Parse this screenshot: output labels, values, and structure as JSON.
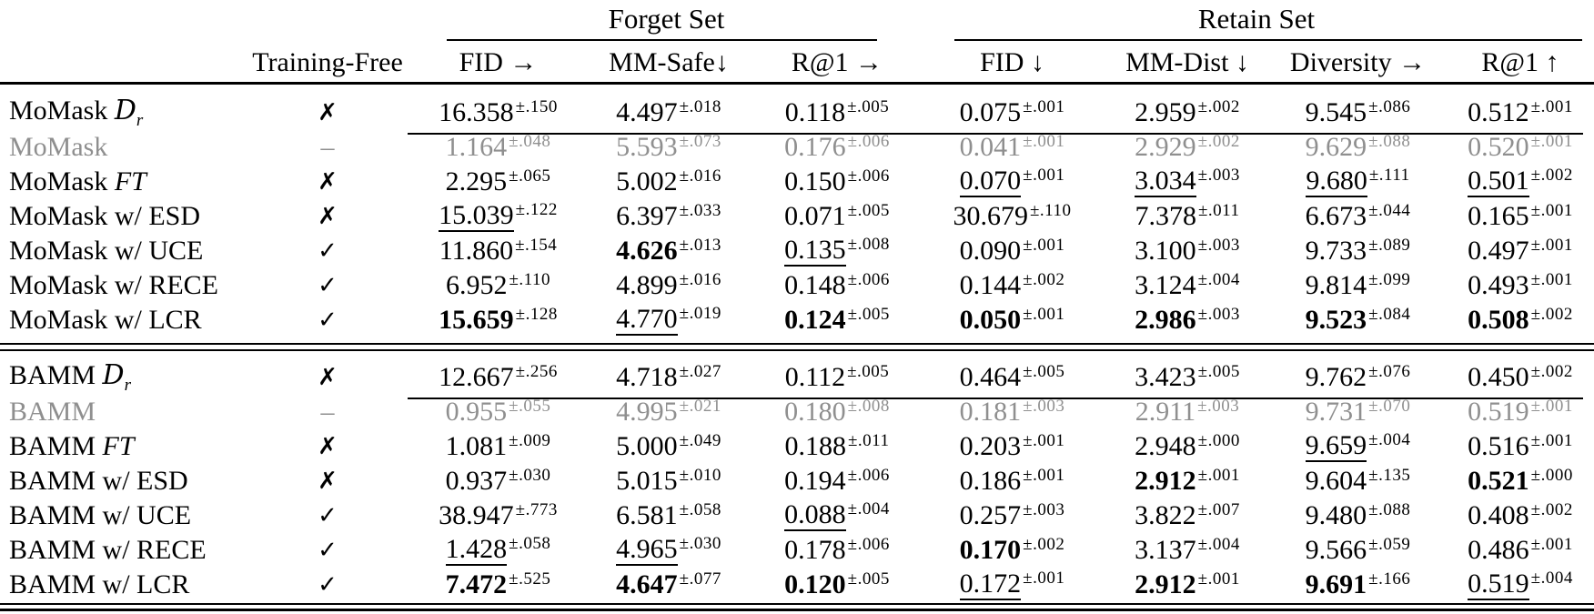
{
  "table": {
    "groups": [
      {
        "label": "Forget Set"
      },
      {
        "label": "Retain Set"
      }
    ],
    "columns": [
      "Training-Free",
      "FID →",
      "MM-Safe↓",
      "R@1 →",
      "FID ↓",
      "MM-Dist ↓",
      "Diversity →",
      "R@1 ↑"
    ],
    "style_legend": {
      "n": "normal",
      "b": "bold",
      "u": "underline"
    },
    "sections": [
      {
        "rows": [
          {
            "m": "MoMask",
            "suffix": "Dr",
            "tf": "✗",
            "gray": false,
            "cells": [
              {
                "v": "16.358",
                "e": "±.150",
                "s": "n"
              },
              {
                "v": "4.497",
                "e": "±.018",
                "s": "n"
              },
              {
                "v": "0.118",
                "e": "±.005",
                "s": "n"
              },
              {
                "v": "0.075",
                "e": "±.001",
                "s": "n"
              },
              {
                "v": "2.959",
                "e": "±.002",
                "s": "n"
              },
              {
                "v": "9.545",
                "e": "±.086",
                "s": "n"
              },
              {
                "v": "0.512",
                "e": "±.001",
                "s": "n"
              }
            ]
          },
          {
            "m": "MoMask",
            "suffix": "",
            "tf": "–",
            "gray": true,
            "cells": [
              {
                "v": "1.164",
                "e": "±.048",
                "s": "n"
              },
              {
                "v": "5.593",
                "e": "±.073",
                "s": "n"
              },
              {
                "v": "0.176",
                "e": "±.006",
                "s": "n"
              },
              {
                "v": "0.041",
                "e": "±.001",
                "s": "n"
              },
              {
                "v": "2.929",
                "e": "±.002",
                "s": "n"
              },
              {
                "v": "9.629",
                "e": "±.088",
                "s": "n"
              },
              {
                "v": "0.520",
                "e": "±.001",
                "s": "n"
              }
            ]
          },
          {
            "m": "MoMask",
            "suffix": "FT",
            "tf": "✗",
            "gray": false,
            "cells": [
              {
                "v": "2.295",
                "e": "±.065",
                "s": "n"
              },
              {
                "v": "5.002",
                "e": "±.016",
                "s": "n"
              },
              {
                "v": "0.150",
                "e": "±.006",
                "s": "n"
              },
              {
                "v": "0.070",
                "e": "±.001",
                "s": "u"
              },
              {
                "v": "3.034",
                "e": "±.003",
                "s": "u"
              },
              {
                "v": "9.680",
                "e": "±.111",
                "s": "u"
              },
              {
                "v": "0.501",
                "e": "±.002",
                "s": "u"
              }
            ]
          },
          {
            "m": "MoMask w/ ESD",
            "suffix": "",
            "tf": "✗",
            "gray": false,
            "cells": [
              {
                "v": "15.039",
                "e": "±.122",
                "s": "u"
              },
              {
                "v": "6.397",
                "e": "±.033",
                "s": "n"
              },
              {
                "v": "0.071",
                "e": "±.005",
                "s": "n"
              },
              {
                "v": "30.679",
                "e": "±.110",
                "s": "n"
              },
              {
                "v": "7.378",
                "e": "±.011",
                "s": "n"
              },
              {
                "v": "6.673",
                "e": "±.044",
                "s": "n"
              },
              {
                "v": "0.165",
                "e": "±.001",
                "s": "n"
              }
            ]
          },
          {
            "m": "MoMask w/ UCE",
            "suffix": "",
            "tf": "✓",
            "gray": false,
            "cells": [
              {
                "v": "11.860",
                "e": "±.154",
                "s": "n"
              },
              {
                "v": "4.626",
                "e": "±.013",
                "s": "b"
              },
              {
                "v": "0.135",
                "e": "±.008",
                "s": "u"
              },
              {
                "v": "0.090",
                "e": "±.001",
                "s": "n"
              },
              {
                "v": "3.100",
                "e": "±.003",
                "s": "n"
              },
              {
                "v": "9.733",
                "e": "±.089",
                "s": "n"
              },
              {
                "v": "0.497",
                "e": "±.001",
                "s": "n"
              }
            ]
          },
          {
            "m": "MoMask w/ RECE",
            "suffix": "",
            "tf": "✓",
            "gray": false,
            "cells": [
              {
                "v": "6.952",
                "e": "±.110",
                "s": "n"
              },
              {
                "v": "4.899",
                "e": "±.016",
                "s": "n"
              },
              {
                "v": "0.148",
                "e": "±.006",
                "s": "n"
              },
              {
                "v": "0.144",
                "e": "±.002",
                "s": "n"
              },
              {
                "v": "3.124",
                "e": "±.004",
                "s": "n"
              },
              {
                "v": "9.814",
                "e": "±.099",
                "s": "n"
              },
              {
                "v": "0.493",
                "e": "±.001",
                "s": "n"
              }
            ]
          },
          {
            "m": "MoMask w/ LCR",
            "suffix": "",
            "tf": "✓",
            "gray": false,
            "cells": [
              {
                "v": "15.659",
                "e": "±.128",
                "s": "b"
              },
              {
                "v": "4.770",
                "e": "±.019",
                "s": "u"
              },
              {
                "v": "0.124",
                "e": "±.005",
                "s": "b"
              },
              {
                "v": "0.050",
                "e": "±.001",
                "s": "b"
              },
              {
                "v": "2.986",
                "e": "±.003",
                "s": "b"
              },
              {
                "v": "9.523",
                "e": "±.084",
                "s": "b"
              },
              {
                "v": "0.508",
                "e": "±.002",
                "s": "b"
              }
            ]
          }
        ]
      },
      {
        "rows": [
          {
            "m": "BAMM",
            "suffix": "Dr",
            "tf": "✗",
            "gray": false,
            "cells": [
              {
                "v": "12.667",
                "e": "±.256",
                "s": "n"
              },
              {
                "v": "4.718",
                "e": "±.027",
                "s": "n"
              },
              {
                "v": "0.112",
                "e": "±.005",
                "s": "n"
              },
              {
                "v": "0.464",
                "e": "±.005",
                "s": "n"
              },
              {
                "v": "3.423",
                "e": "±.005",
                "s": "n"
              },
              {
                "v": "9.762",
                "e": "±.076",
                "s": "n"
              },
              {
                "v": "0.450",
                "e": "±.002",
                "s": "n"
              }
            ]
          },
          {
            "m": "BAMM",
            "suffix": "",
            "tf": "–",
            "gray": true,
            "cells": [
              {
                "v": "0.955",
                "e": "±.055",
                "s": "n"
              },
              {
                "v": "4.995",
                "e": "±.021",
                "s": "n"
              },
              {
                "v": "0.180",
                "e": "±.008",
                "s": "n"
              },
              {
                "v": "0.181",
                "e": "±.003",
                "s": "n"
              },
              {
                "v": "2.911",
                "e": "±.003",
                "s": "n"
              },
              {
                "v": "9.731",
                "e": "±.070",
                "s": "n"
              },
              {
                "v": "0.519",
                "e": "±.001",
                "s": "n"
              }
            ]
          },
          {
            "m": "BAMM",
            "suffix": "FT",
            "tf": "✗",
            "gray": false,
            "cells": [
              {
                "v": "1.081",
                "e": "±.009",
                "s": "n"
              },
              {
                "v": "5.000",
                "e": "±.049",
                "s": "n"
              },
              {
                "v": "0.188",
                "e": "±.011",
                "s": "n"
              },
              {
                "v": "0.203",
                "e": "±.001",
                "s": "n"
              },
              {
                "v": "2.948",
                "e": "±.000",
                "s": "n"
              },
              {
                "v": "9.659",
                "e": "±.004",
                "s": "u"
              },
              {
                "v": "0.516",
                "e": "±.001",
                "s": "n"
              }
            ]
          },
          {
            "m": "BAMM w/ ESD",
            "suffix": "",
            "tf": "✗",
            "gray": false,
            "cells": [
              {
                "v": "0.937",
                "e": "±.030",
                "s": "n"
              },
              {
                "v": "5.015",
                "e": "±.010",
                "s": "n"
              },
              {
                "v": "0.194",
                "e": "±.006",
                "s": "n"
              },
              {
                "v": "0.186",
                "e": "±.001",
                "s": "n"
              },
              {
                "v": "2.912",
                "e": "±.001",
                "s": "b"
              },
              {
                "v": "9.604",
                "e": "±.135",
                "s": "n"
              },
              {
                "v": "0.521",
                "e": "±.000",
                "s": "b"
              }
            ]
          },
          {
            "m": "BAMM w/ UCE",
            "suffix": "",
            "tf": "✓",
            "gray": false,
            "cells": [
              {
                "v": "38.947",
                "e": "±.773",
                "s": "n"
              },
              {
                "v": "6.581",
                "e": "±.058",
                "s": "n"
              },
              {
                "v": "0.088",
                "e": "±.004",
                "s": "u"
              },
              {
                "v": "0.257",
                "e": "±.003",
                "s": "n"
              },
              {
                "v": "3.822",
                "e": "±.007",
                "s": "n"
              },
              {
                "v": "9.480",
                "e": "±.088",
                "s": "n"
              },
              {
                "v": "0.408",
                "e": "±.002",
                "s": "n"
              }
            ]
          },
          {
            "m": "BAMM w/ RECE",
            "suffix": "",
            "tf": "✓",
            "gray": false,
            "cells": [
              {
                "v": "1.428",
                "e": "±.058",
                "s": "u"
              },
              {
                "v": "4.965",
                "e": "±.030",
                "s": "u"
              },
              {
                "v": "0.178",
                "e": "±.006",
                "s": "n"
              },
              {
                "v": "0.170",
                "e": "±.002",
                "s": "b"
              },
              {
                "v": "3.137",
                "e": "±.004",
                "s": "n"
              },
              {
                "v": "9.566",
                "e": "±.059",
                "s": "n"
              },
              {
                "v": "0.486",
                "e": "±.001",
                "s": "n"
              }
            ]
          },
          {
            "m": "BAMM w/ LCR",
            "suffix": "",
            "tf": "✓",
            "gray": false,
            "cells": [
              {
                "v": "7.472",
                "e": "±.525",
                "s": "b"
              },
              {
                "v": "4.647",
                "e": "±.077",
                "s": "b"
              },
              {
                "v": "0.120",
                "e": "±.005",
                "s": "b"
              },
              {
                "v": "0.172",
                "e": "±.001",
                "s": "u"
              },
              {
                "v": "2.912",
                "e": "±.001",
                "s": "b"
              },
              {
                "v": "9.691",
                "e": "±.166",
                "s": "b"
              },
              {
                "v": "0.519",
                "e": "±.004",
                "s": "u"
              }
            ]
          }
        ]
      }
    ]
  }
}
